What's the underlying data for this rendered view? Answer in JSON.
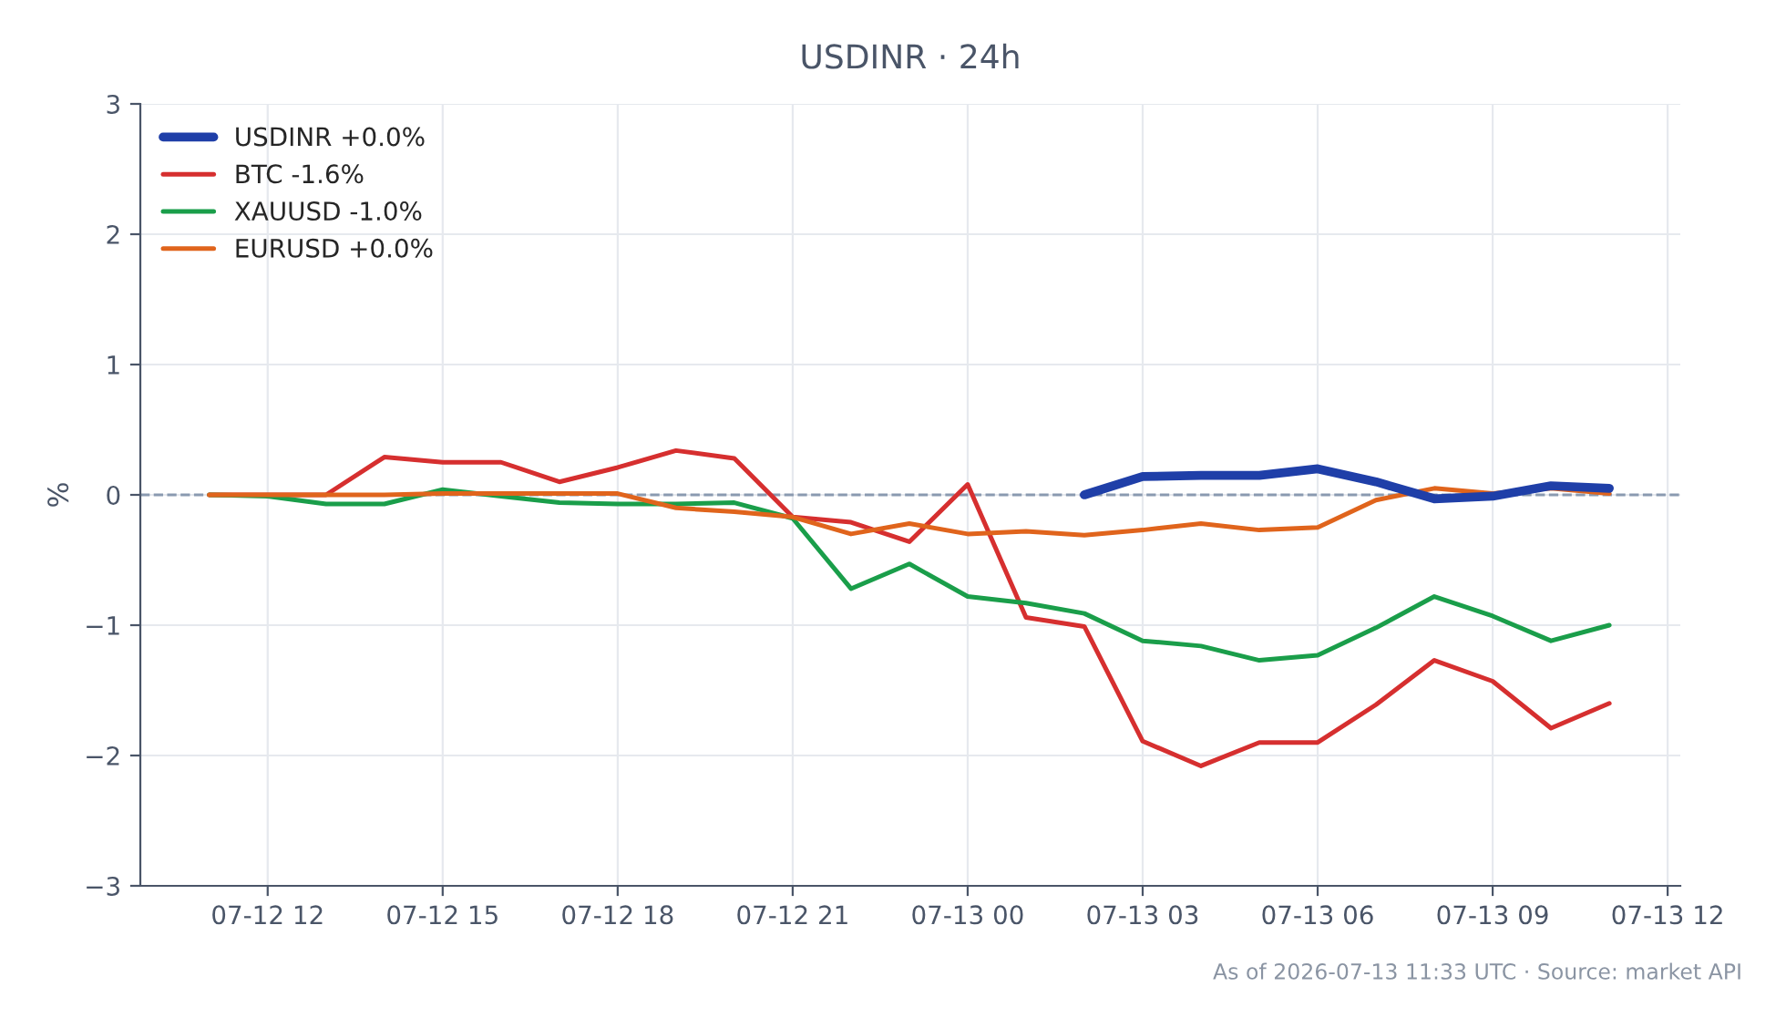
{
  "chart_data": {
    "type": "line",
    "title": "USDINR · 24h",
    "ylabel": "%",
    "x": [
      "2026-07-12T11:00",
      "2026-07-12T12:00",
      "2026-07-12T13:00",
      "2026-07-12T14:00",
      "2026-07-12T15:00",
      "2026-07-12T16:00",
      "2026-07-12T17:00",
      "2026-07-12T18:00",
      "2026-07-12T19:00",
      "2026-07-12T20:00",
      "2026-07-12T21:00",
      "2026-07-12T22:00",
      "2026-07-12T23:00",
      "2026-07-13T00:00",
      "2026-07-13T01:00",
      "2026-07-13T02:00",
      "2026-07-13T03:00",
      "2026-07-13T04:00",
      "2026-07-13T05:00",
      "2026-07-13T06:00",
      "2026-07-13T07:00",
      "2026-07-13T08:00",
      "2026-07-13T09:00",
      "2026-07-13T10:00",
      "2026-07-13T11:00"
    ],
    "series": [
      {
        "name": "USDINR +0.0%",
        "color": "#1f3fa8",
        "values": [
          null,
          null,
          null,
          null,
          null,
          null,
          null,
          null,
          null,
          null,
          null,
          null,
          null,
          null,
          null,
          0,
          0.14,
          0.15,
          0.15,
          0.2,
          0.1,
          -0.03,
          -0.01,
          0.07,
          0.05
        ]
      },
      {
        "name": "BTC -1.6%",
        "color": "#d62f2f",
        "values": [
          0,
          0,
          0,
          0.29,
          0.25,
          0.25,
          0.1,
          0.21,
          0.34,
          0.28,
          -0.17,
          -0.21,
          -0.36,
          0.08,
          -0.94,
          -1.01,
          -1.89,
          -2.08,
          -1.9,
          -1.9,
          -1.61,
          -1.27,
          -1.43,
          -1.79,
          -1.6
        ]
      },
      {
        "name": "XAUUSD -1.0%",
        "color": "#1a9e4a",
        "values": [
          0,
          -0.01,
          -0.07,
          -0.07,
          0.04,
          -0.01,
          -0.06,
          -0.07,
          -0.07,
          -0.06,
          -0.18,
          -0.72,
          -0.53,
          -0.78,
          -0.83,
          -0.91,
          -1.12,
          -1.16,
          -1.27,
          -1.23,
          -1.02,
          -0.78,
          -0.93,
          -1.12,
          -1.0
        ]
      },
      {
        "name": "EURUSD +0.0%",
        "color": "#e0641c",
        "values": [
          0,
          0,
          0,
          0,
          0.01,
          0.01,
          0.01,
          0.01,
          -0.1,
          -0.13,
          -0.17,
          -0.3,
          -0.22,
          -0.3,
          -0.28,
          -0.31,
          -0.27,
          -0.22,
          -0.27,
          -0.25,
          -0.04,
          0.05,
          0.01,
          0.05,
          0.01
        ]
      }
    ],
    "xlim": [
      "2026-07-12T09:49",
      "2026-07-13T12:13"
    ],
    "xticks": [
      {
        "value": "2026-07-12T12:00",
        "label": "07-12 12"
      },
      {
        "value": "2026-07-12T15:00",
        "label": "07-12 15"
      },
      {
        "value": "2026-07-12T18:00",
        "label": "07-12 18"
      },
      {
        "value": "2026-07-12T21:00",
        "label": "07-12 21"
      },
      {
        "value": "2026-07-13T00:00",
        "label": "07-13 00"
      },
      {
        "value": "2026-07-13T03:00",
        "label": "07-13 03"
      },
      {
        "value": "2026-07-13T06:00",
        "label": "07-13 06"
      },
      {
        "value": "2026-07-13T09:00",
        "label": "07-13 09"
      },
      {
        "value": "2026-07-13T12:00",
        "label": "07-13 12"
      }
    ],
    "ylim": [
      -3,
      3
    ],
    "yticks": [
      {
        "value": -3,
        "label": "−3"
      },
      {
        "value": -2,
        "label": "−2"
      },
      {
        "value": -1,
        "label": "−1"
      },
      0,
      1,
      2,
      3
    ],
    "ref_lines": [
      {
        "axis": "y",
        "value": 0,
        "color": "#8a9ab0",
        "line_style": "dashed"
      }
    ],
    "grid": true,
    "legend": "top left",
    "line_style": "solid",
    "marker": "none",
    "annotations": [
      "As of 2026-07-13 11:33 UTC · Source: market API"
    ]
  }
}
